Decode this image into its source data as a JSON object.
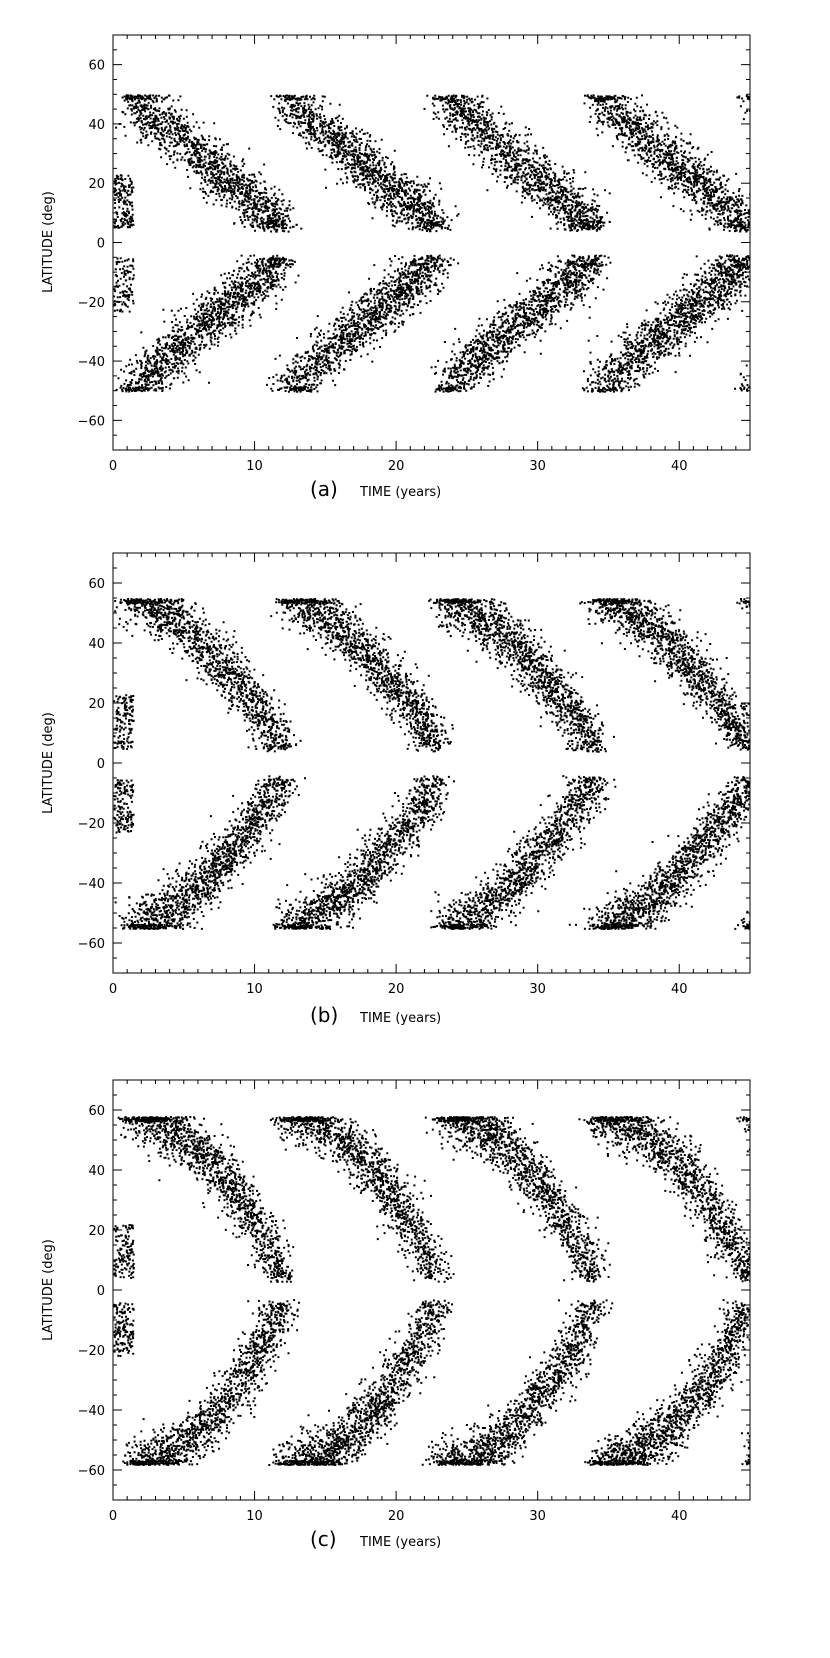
{
  "chart_data": [
    {
      "type": "scatter",
      "panel_label": "(a)",
      "xlabel": "TIME (years)",
      "ylabel": "LATITUDE (deg)",
      "xlim": [
        0,
        45
      ],
      "ylim": [
        -70,
        70
      ],
      "xticks": [
        0,
        10,
        20,
        30,
        40
      ],
      "yticks": [
        -60,
        -40,
        -20,
        0,
        20,
        40,
        60
      ],
      "grid": false,
      "marker_color": "#000000",
      "cycle_period_years": 11,
      "cycle_start_years": [
        1,
        12,
        23,
        34,
        45
      ],
      "max_latitude_deg": 50,
      "min_latitude_deg": 5,
      "shape": "linear"
    },
    {
      "type": "scatter",
      "panel_label": "(b)",
      "xlabel": "TIME (years)",
      "ylabel": "LATITUDE (deg)",
      "xlim": [
        0,
        45
      ],
      "ylim": [
        -70,
        70
      ],
      "xticks": [
        0,
        10,
        20,
        30,
        40
      ],
      "yticks": [
        -60,
        -40,
        -20,
        0,
        20,
        40,
        60
      ],
      "grid": false,
      "marker_color": "#000000",
      "cycle_period_years": 11,
      "cycle_start_years": [
        1,
        12,
        23,
        34,
        45
      ],
      "max_latitude_deg": 55,
      "min_latitude_deg": 5,
      "shape": "convex"
    },
    {
      "type": "scatter",
      "panel_label": "(c)",
      "xlabel": "TIME (years)",
      "ylabel": "LATITUDE (deg)",
      "xlim": [
        0,
        45
      ],
      "ylim": [
        -70,
        70
      ],
      "xticks": [
        0,
        10,
        20,
        30,
        40
      ],
      "yticks": [
        -60,
        -40,
        -20,
        0,
        20,
        40,
        60
      ],
      "grid": false,
      "marker_color": "#000000",
      "cycle_period_years": 11,
      "cycle_start_years": [
        1,
        12,
        23,
        34,
        45
      ],
      "max_latitude_deg": 58,
      "min_latitude_deg": 4,
      "shape": "strongly-convex"
    }
  ]
}
